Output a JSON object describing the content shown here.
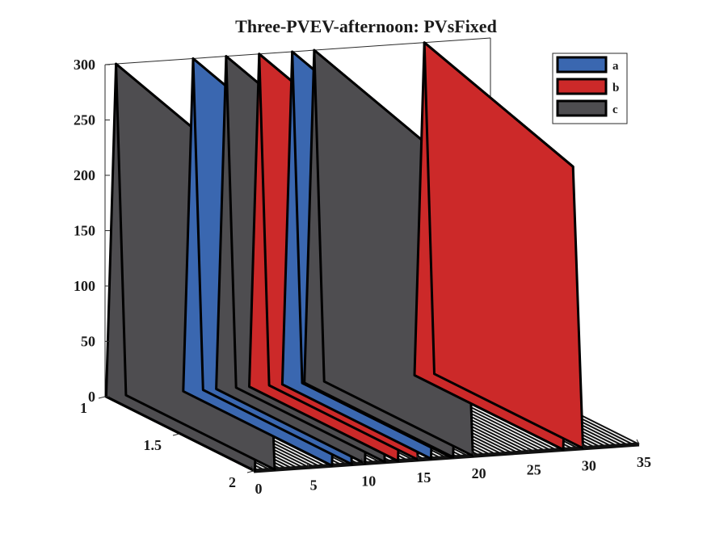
{
  "chart_data": {
    "type": "bar3",
    "title": "Three-PVEV-afternoon: PVsFixed",
    "legend": {
      "entries": [
        "a",
        "b",
        "c"
      ],
      "position": "top-right"
    },
    "colors": {
      "a": "#3a67b0",
      "b": "#cc2929",
      "c": "#4e4d50"
    },
    "z_axis": {
      "range": [
        0,
        300
      ],
      "ticks": [
        "0",
        "50",
        "100",
        "150",
        "200",
        "250",
        "300"
      ]
    },
    "x_axis": {
      "range": [
        0,
        35
      ],
      "ticks": [
        "0",
        "5",
        "10",
        "15",
        "20",
        "25",
        "30",
        "35"
      ]
    },
    "y_axis": {
      "range": [
        1,
        2
      ],
      "ticks": [
        "1",
        "1.5",
        "2"
      ]
    },
    "peaks": [
      {
        "x": 1,
        "series": "c",
        "value": 300
      },
      {
        "x": 8,
        "series": "a",
        "value": 300
      },
      {
        "x": 11,
        "series": "c",
        "value": 300
      },
      {
        "x": 14,
        "series": "b",
        "value": 300
      },
      {
        "x": 17,
        "series": "a",
        "value": 300
      },
      {
        "x": 19,
        "series": "c",
        "value": 300
      },
      {
        "x": 29,
        "series": "b",
        "value": 300
      }
    ],
    "grid": false
  }
}
